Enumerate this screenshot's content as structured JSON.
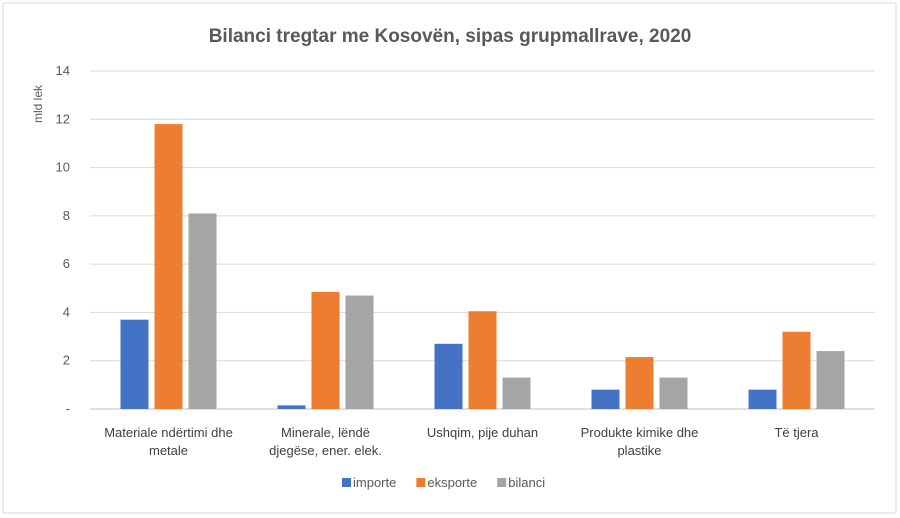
{
  "chart_data": {
    "type": "bar",
    "title": "Bilanci tregtar me Kosovën, sipas grupmallrave, 2020",
    "ylabel": "mld lek",
    "xlabel": "",
    "ylim": [
      0,
      14
    ],
    "yticks": [
      {
        "value": 0,
        "label": "-"
      },
      {
        "value": 2,
        "label": "2"
      },
      {
        "value": 4,
        "label": "4"
      },
      {
        "value": 6,
        "label": "6"
      },
      {
        "value": 8,
        "label": "8"
      },
      {
        "value": 10,
        "label": "10"
      },
      {
        "value": 12,
        "label": "12"
      },
      {
        "value": 14,
        "label": "14"
      }
    ],
    "categories": [
      [
        "Materiale ndërtimi dhe",
        "metale"
      ],
      [
        "Minerale, lëndë",
        "djegëse, ener. elek."
      ],
      [
        "Ushqim, pije duhan"
      ],
      [
        "Produkte kimike dhe",
        "plastike"
      ],
      [
        "Të tjera"
      ]
    ],
    "series": [
      {
        "name": "importe",
        "color": "#4472C4",
        "values": [
          3.7,
          0.15,
          2.7,
          0.8,
          0.8
        ]
      },
      {
        "name": "eksporte",
        "color": "#ED7D31",
        "values": [
          11.8,
          4.85,
          4.05,
          2.15,
          3.2
        ]
      },
      {
        "name": "bilanci",
        "color": "#A5A5A5",
        "values": [
          8.1,
          4.7,
          1.3,
          1.3,
          2.4
        ]
      }
    ],
    "grid": true,
    "legend_position": "bottom"
  }
}
